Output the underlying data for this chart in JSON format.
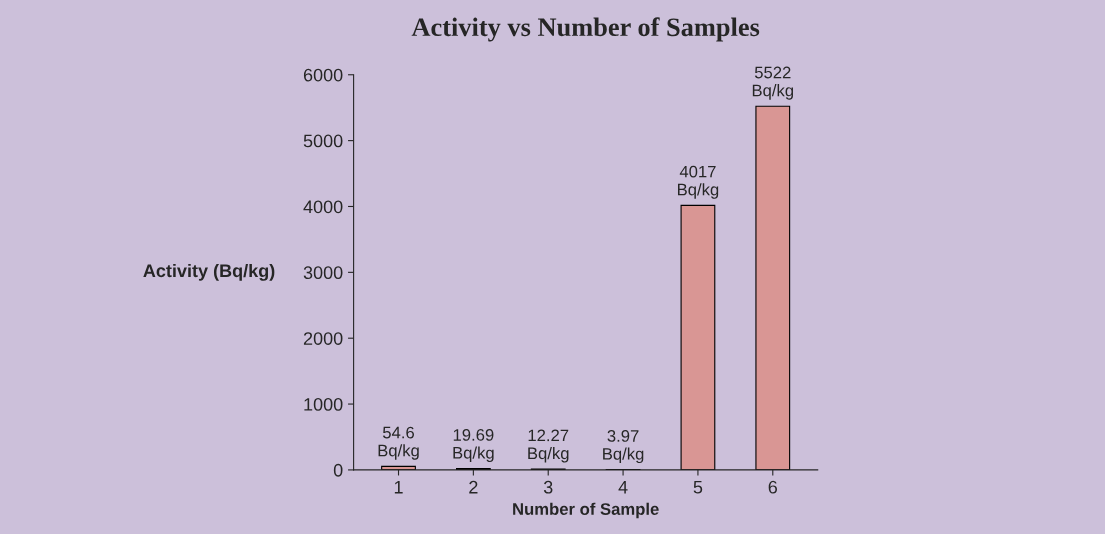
{
  "chart_data": {
    "type": "bar",
    "title": "Activity vs Number of Samples",
    "xlabel": "Number of Sample",
    "ylabel": "Activity (Bq/kg)",
    "categories": [
      "1",
      "2",
      "3",
      "4",
      "5",
      "6"
    ],
    "values": [
      54.6,
      19.69,
      12.27,
      3.97,
      4017,
      5522
    ],
    "value_labels": [
      "54.6\nBq/kg",
      "19.69\nBq/kg",
      "12.27\nBq/kg",
      "3.97\nBq/kg",
      "4017\nBq/kg",
      "5522\nBq/kg"
    ],
    "color": "#d99694",
    "ylim": [
      0,
      6000
    ],
    "yticks": [
      0,
      1000,
      2000,
      3000,
      4000,
      5000,
      6000
    ],
    "grid": false,
    "legend": false
  }
}
